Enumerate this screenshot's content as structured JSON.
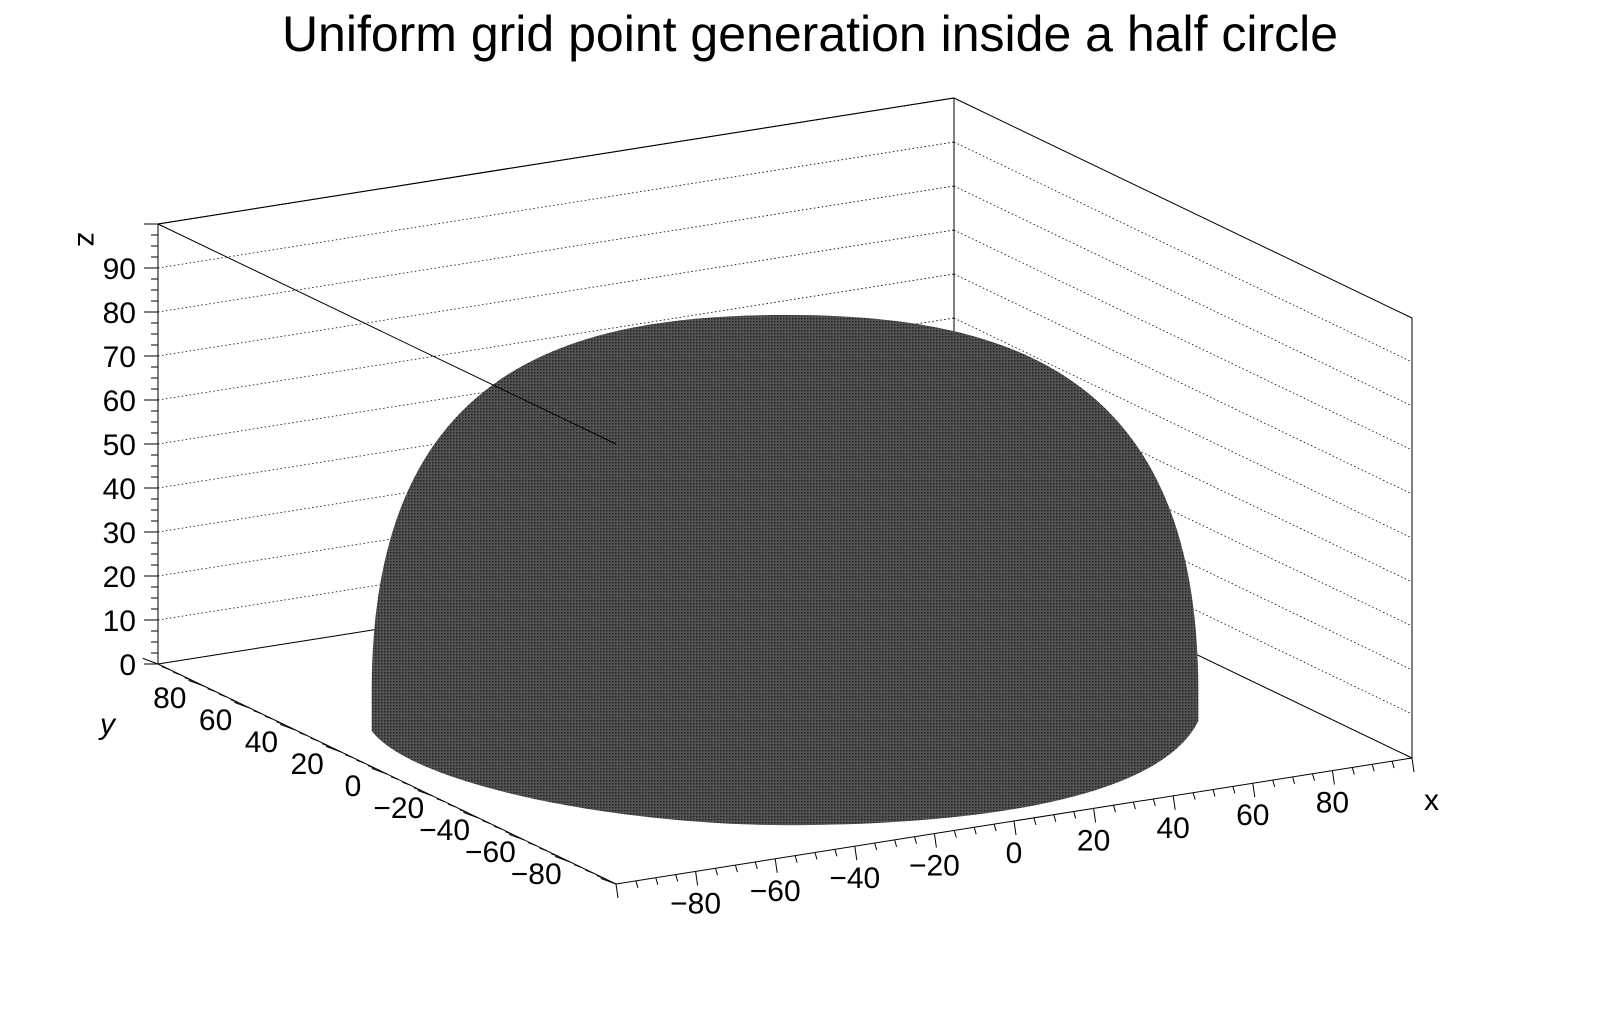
{
  "chart_data": {
    "type": "scatter",
    "title": "Uniform grid point generation inside a half circle",
    "xlabel": "x",
    "ylabel": "y",
    "zlabel": "z",
    "xlim": [
      -100,
      100
    ],
    "ylim": [
      -100,
      100
    ],
    "zlim": [
      0,
      100
    ],
    "x_ticks": [
      -80,
      -60,
      -40,
      -20,
      0,
      20,
      40,
      60,
      80
    ],
    "y_ticks": [
      -80,
      -60,
      -40,
      -20,
      0,
      20,
      40,
      60,
      80
    ],
    "z_ticks": [
      0,
      10,
      20,
      30,
      40,
      50,
      60,
      70,
      80,
      90
    ],
    "x_tick_labels": [
      "−80",
      "−60",
      "−40",
      "−20",
      "0",
      "20",
      "40",
      "60",
      "80"
    ],
    "y_tick_labels": [
      "−80",
      "−60",
      "−40",
      "−20",
      "0",
      "20",
      "40",
      "60",
      "80"
    ],
    "z_tick_labels": [
      "0",
      "10",
      "20",
      "30",
      "40",
      "50",
      "60",
      "70",
      "80",
      "90"
    ],
    "radius": 90,
    "grid_z": true,
    "marker_color": "#000000",
    "fill_color": "#444444"
  }
}
